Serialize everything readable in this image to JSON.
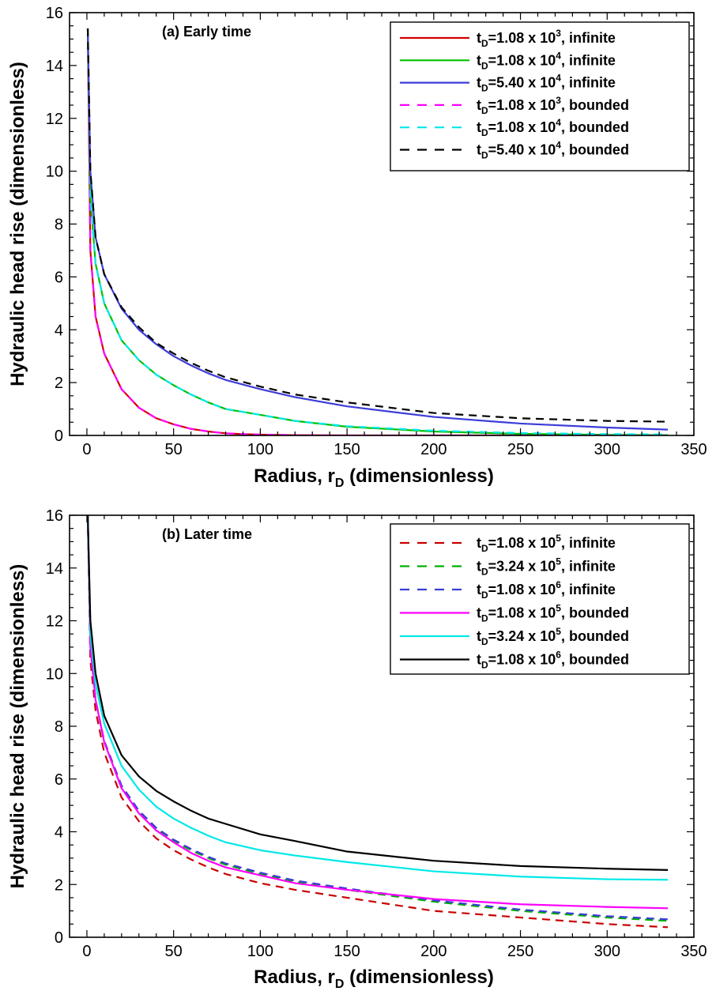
{
  "chart_data": [
    {
      "type": "line",
      "title": "(a) Early time",
      "xlabel": "Radius, r",
      "xlabel_sub": "D",
      "xlabel_suffix": " (dimensionless)",
      "ylabel": "Hydraulic head rise (dimensionless)",
      "xlim": [
        -10,
        350
      ],
      "ylim": [
        0,
        16
      ],
      "xticks": [
        0,
        50,
        100,
        150,
        200,
        250,
        300,
        350
      ],
      "yticks": [
        0,
        2,
        4,
        6,
        8,
        10,
        12,
        14,
        16
      ],
      "grid": false,
      "legend_position": "top-right",
      "series": [
        {
          "name": "tD=1.08 x 10^3, infinite",
          "label_pre": "t",
          "label_sub": "D",
          "label_mid": "=1.08 x 10",
          "label_sup": "3",
          "label_post": ", infinite",
          "color": "#d40000",
          "dash": "solid",
          "x": [
            0.5,
            2,
            5,
            10,
            20,
            30,
            40,
            50,
            60,
            70,
            80,
            90,
            100,
            120,
            150,
            200,
            250,
            300,
            335
          ],
          "y": [
            15.4,
            7.0,
            4.5,
            3.1,
            1.75,
            1.05,
            0.65,
            0.42,
            0.25,
            0.15,
            0.08,
            0.05,
            0.03,
            0.01,
            0.0,
            0.0,
            0.0,
            0.0,
            0.0
          ]
        },
        {
          "name": "tD=1.08 x 10^4, infinite",
          "label_pre": "t",
          "label_sub": "D",
          "label_mid": "=1.08 x 10",
          "label_sup": "4",
          "label_post": ", infinite",
          "color": "#00c000",
          "dash": "solid",
          "x": [
            0.5,
            2,
            5,
            10,
            20,
            30,
            40,
            50,
            60,
            70,
            80,
            100,
            120,
            150,
            200,
            250,
            300,
            335
          ],
          "y": [
            15.4,
            9.0,
            6.5,
            5.0,
            3.6,
            2.85,
            2.3,
            1.9,
            1.55,
            1.25,
            1.0,
            0.78,
            0.55,
            0.33,
            0.15,
            0.06,
            0.02,
            0.01
          ]
        },
        {
          "name": "tD=5.40 x 10^4, infinite",
          "label_pre": "t",
          "label_sub": "D",
          "label_mid": "=5.40 x 10",
          "label_sup": "4",
          "label_post": ", infinite",
          "color": "#3c3cd8",
          "dash": "solid",
          "x": [
            0.5,
            2,
            5,
            10,
            20,
            30,
            40,
            50,
            60,
            70,
            80,
            100,
            120,
            150,
            200,
            250,
            300,
            335
          ],
          "y": [
            15.4,
            10.0,
            7.5,
            6.1,
            4.8,
            4.0,
            3.45,
            3.0,
            2.65,
            2.35,
            2.1,
            1.75,
            1.45,
            1.1,
            0.7,
            0.45,
            0.3,
            0.22
          ]
        },
        {
          "name": "tD=1.08 x 10^3, bounded",
          "label_pre": "t",
          "label_sub": "D",
          "label_mid": "=1.08 x 10",
          "label_sup": "3",
          "label_post": ", bounded",
          "color": "#ff00ff",
          "dash": "dashed",
          "x": [
            0.5,
            2,
            5,
            10,
            20,
            30,
            40,
            50,
            60,
            70,
            80,
            90,
            100,
            120,
            150,
            200,
            250,
            300,
            335
          ],
          "y": [
            15.4,
            7.0,
            4.5,
            3.1,
            1.75,
            1.05,
            0.65,
            0.42,
            0.25,
            0.15,
            0.08,
            0.05,
            0.03,
            0.01,
            0.0,
            0.0,
            0.0,
            0.0,
            0.0
          ]
        },
        {
          "name": "tD=1.08 x 10^4, bounded",
          "label_pre": "t",
          "label_sub": "D",
          "label_mid": "=1.08 x 10",
          "label_sup": "4",
          "label_post": ", bounded",
          "color": "#00e8e8",
          "dash": "dashed",
          "x": [
            0.5,
            2,
            5,
            10,
            20,
            30,
            40,
            50,
            60,
            70,
            80,
            100,
            120,
            150,
            200,
            250,
            300,
            335
          ],
          "y": [
            15.4,
            9.0,
            6.5,
            5.0,
            3.6,
            2.85,
            2.3,
            1.9,
            1.55,
            1.25,
            1.0,
            0.78,
            0.55,
            0.35,
            0.18,
            0.09,
            0.05,
            0.04
          ]
        },
        {
          "name": "tD=5.40 x 10^4, bounded",
          "label_pre": "t",
          "label_sub": "D",
          "label_mid": "=5.40 x 10",
          "label_sup": "4",
          "label_post": ", bounded",
          "color": "#000000",
          "dash": "dashed",
          "x": [
            0.5,
            2,
            5,
            10,
            20,
            30,
            40,
            50,
            60,
            70,
            80,
            100,
            120,
            150,
            200,
            250,
            300,
            335
          ],
          "y": [
            15.4,
            10.0,
            7.5,
            6.1,
            4.85,
            4.1,
            3.5,
            3.1,
            2.75,
            2.45,
            2.2,
            1.85,
            1.55,
            1.25,
            0.85,
            0.65,
            0.55,
            0.52
          ]
        }
      ]
    },
    {
      "type": "line",
      "title": "(b) Later time",
      "xlabel": "Radius, r",
      "xlabel_sub": "D",
      "xlabel_suffix": " (dimensionless)",
      "ylabel": "Hydraulic head rise (dimensionless)",
      "xlim": [
        -10,
        350
      ],
      "ylim": [
        0,
        16
      ],
      "xticks": [
        0,
        50,
        100,
        150,
        200,
        250,
        300,
        350
      ],
      "yticks": [
        0,
        2,
        4,
        6,
        8,
        10,
        12,
        14,
        16
      ],
      "grid": false,
      "legend_position": "top-right",
      "series": [
        {
          "name": "tD=1.08 x 10^5, infinite",
          "label_pre": "t",
          "label_sub": "D",
          "label_mid": "=1.08 x 10",
          "label_sup": "5",
          "label_post": ", infinite",
          "color": "#c80000",
          "dash": "dashed",
          "x": [
            0.5,
            2,
            5,
            10,
            20,
            30,
            40,
            50,
            60,
            70,
            80,
            100,
            120,
            150,
            200,
            250,
            300,
            335
          ],
          "y": [
            16.0,
            10.5,
            8.6,
            7.0,
            5.3,
            4.4,
            3.75,
            3.3,
            2.95,
            2.65,
            2.4,
            2.05,
            1.8,
            1.5,
            1.0,
            0.75,
            0.5,
            0.38
          ]
        },
        {
          "name": "tD=3.24 x 10^5, infinite",
          "label_pre": "t",
          "label_sub": "D",
          "label_mid": "=3.24 x 10",
          "label_sup": "5",
          "label_post": ", infinite",
          "color": "#00b000",
          "dash": "dashed",
          "x": [
            0.5,
            2,
            5,
            10,
            20,
            30,
            40,
            50,
            60,
            70,
            80,
            100,
            120,
            150,
            200,
            250,
            300,
            335
          ],
          "y": [
            16.0,
            11.0,
            9.0,
            7.4,
            5.7,
            4.75,
            4.1,
            3.65,
            3.3,
            3.0,
            2.75,
            2.4,
            2.1,
            1.8,
            1.35,
            1.0,
            0.75,
            0.62
          ]
        },
        {
          "name": "tD=1.08 x 10^6, infinite",
          "label_pre": "t",
          "label_sub": "D",
          "label_mid": "=1.08 x 10",
          "label_sup": "6",
          "label_post": ", infinite",
          "color": "#3c3cd8",
          "dash": "dashed",
          "x": [
            0.5,
            2,
            5,
            10,
            20,
            30,
            40,
            50,
            60,
            70,
            80,
            100,
            120,
            150,
            200,
            250,
            300,
            335
          ],
          "y": [
            16.0,
            11.0,
            9.0,
            7.45,
            5.75,
            4.8,
            4.15,
            3.7,
            3.35,
            3.05,
            2.8,
            2.45,
            2.15,
            1.85,
            1.4,
            1.05,
            0.8,
            0.68
          ]
        },
        {
          "name": "tD=1.08 x 10^5, bounded",
          "label_pre": "t",
          "label_sub": "D",
          "label_mid": "=1.08 x 10",
          "label_sup": "5",
          "label_post": ", bounded",
          "color": "#ff00ff",
          "dash": "solid",
          "x": [
            0.5,
            2,
            5,
            10,
            20,
            30,
            40,
            50,
            60,
            70,
            80,
            100,
            120,
            150,
            200,
            250,
            300,
            335
          ],
          "y": [
            16.0,
            11.0,
            9.0,
            7.4,
            5.65,
            4.7,
            4.05,
            3.6,
            3.2,
            2.9,
            2.65,
            2.35,
            2.05,
            1.8,
            1.45,
            1.25,
            1.15,
            1.1
          ]
        },
        {
          "name": "tD=3.24 x 10^5, bounded",
          "label_pre": "t",
          "label_sub": "D",
          "label_mid": "=3.24 x 10",
          "label_sup": "5",
          "label_post": ", bounded",
          "color": "#00e8e8",
          "dash": "solid",
          "x": [
            0.5,
            2,
            5,
            10,
            20,
            30,
            40,
            50,
            60,
            70,
            80,
            100,
            120,
            150,
            200,
            250,
            300,
            335
          ],
          "y": [
            16.0,
            11.5,
            9.6,
            8.1,
            6.5,
            5.6,
            4.95,
            4.5,
            4.15,
            3.85,
            3.6,
            3.3,
            3.1,
            2.85,
            2.5,
            2.3,
            2.2,
            2.18
          ]
        },
        {
          "name": "tD=1.08 x 10^6, bounded",
          "label_pre": "t",
          "label_sub": "D",
          "label_mid": "=1.08 x 10",
          "label_sup": "6",
          "label_post": ", bounded",
          "color": "#000000",
          "dash": "solid",
          "x": [
            0.5,
            2,
            5,
            10,
            20,
            30,
            40,
            50,
            60,
            70,
            80,
            100,
            120,
            150,
            200,
            250,
            300,
            335
          ],
          "y": [
            16.0,
            12.0,
            10.0,
            8.4,
            6.9,
            6.1,
            5.55,
            5.15,
            4.8,
            4.5,
            4.3,
            3.9,
            3.65,
            3.25,
            2.9,
            2.7,
            2.6,
            2.55
          ]
        }
      ]
    }
  ]
}
